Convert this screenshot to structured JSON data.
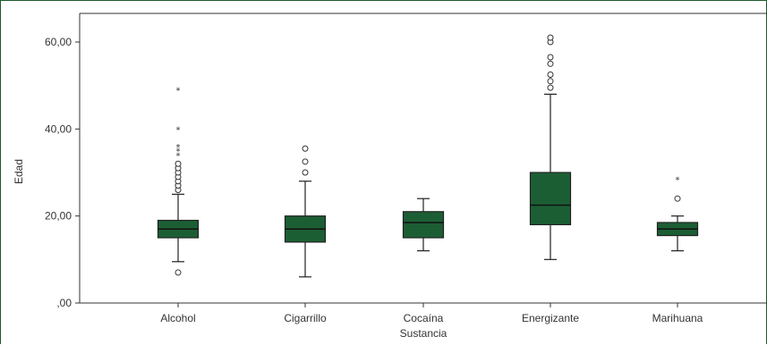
{
  "chart_data": {
    "type": "boxplot",
    "title": "",
    "xlabel": "Sustancia",
    "ylabel": "Edad",
    "ylim": [
      0,
      65
    ],
    "yticks": [
      {
        "value": 0,
        "label": ",00"
      },
      {
        "value": 20,
        "label": "20,00"
      },
      {
        "value": 40,
        "label": "40,00"
      },
      {
        "value": 60,
        "label": "60,00"
      }
    ],
    "grid": false,
    "box_color": "#1c5e34",
    "categories": [
      "Alcohol",
      "Cigarrillo",
      "Cocaína",
      "Energizante",
      "Marihuana"
    ],
    "boxes": [
      {
        "min": 9.5,
        "q1": 15,
        "median": 17,
        "q3": 19,
        "max": 25,
        "outliers_circle": [
          7,
          26,
          27,
          28,
          29,
          30,
          31,
          32
        ],
        "outliers_star": [
          34,
          35,
          36,
          40,
          49
        ]
      },
      {
        "min": 6,
        "q1": 14,
        "median": 17,
        "q3": 20,
        "max": 28,
        "outliers_circle": [
          30,
          32.5,
          35.5
        ],
        "outliers_star": []
      },
      {
        "min": 12,
        "q1": 15,
        "median": 18.5,
        "q3": 21,
        "max": 24,
        "outliers_circle": [],
        "outliers_star": []
      },
      {
        "min": 10,
        "q1": 18,
        "median": 22.5,
        "q3": 30,
        "max": 48,
        "outliers_circle": [
          49.5,
          51,
          52.5,
          55,
          56.5,
          60,
          61
        ],
        "outliers_star": []
      },
      {
        "min": 12,
        "q1": 15.5,
        "median": 17,
        "q3": 18.5,
        "max": 20,
        "outliers_circle": [
          24
        ],
        "outliers_star": [
          28.5
        ]
      }
    ]
  }
}
